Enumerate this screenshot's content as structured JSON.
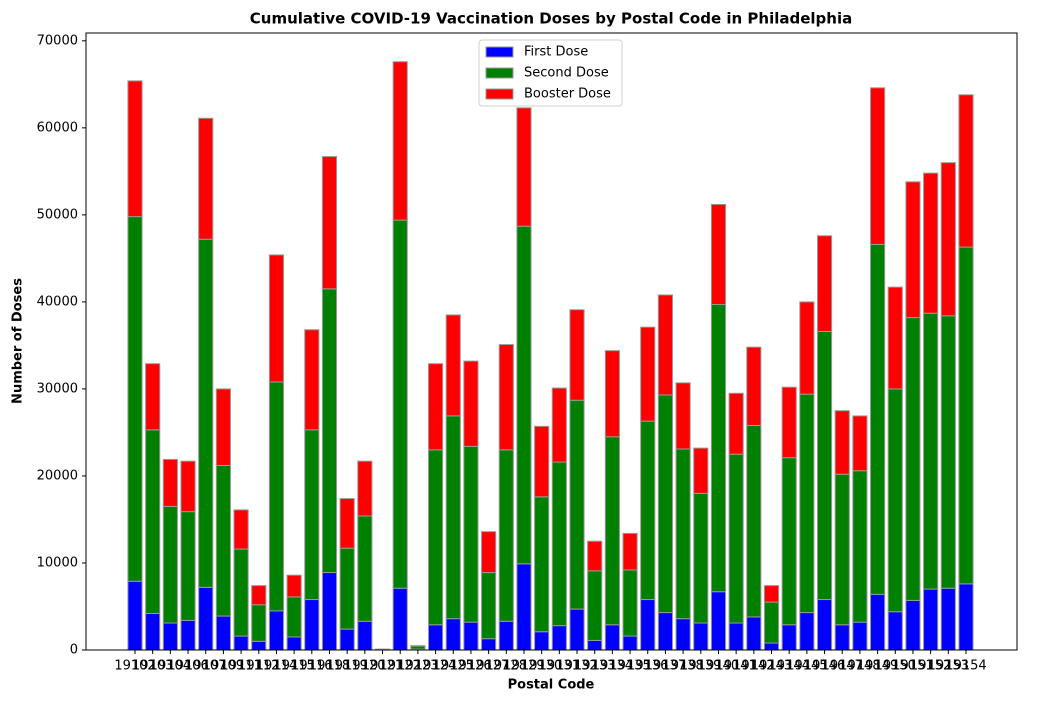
{
  "chart_data": {
    "type": "stacked_bar",
    "title": "Cumulative COVID-19 Vaccination Doses by Postal Code in Philadelphia",
    "x_label": "Postal Code",
    "y_label": "Number of Doses",
    "categories": [
      "19102",
      "19103",
      "19104",
      "19106",
      "19107",
      "19109",
      "19111",
      "19112",
      "19114",
      "19115",
      "19116",
      "19118",
      "19119",
      "19120",
      "19121",
      "19122",
      "19123",
      "19124",
      "19125",
      "19126",
      "19127",
      "19128",
      "19129",
      "19130",
      "19131",
      "19132",
      "19133",
      "19134",
      "19135",
      "19136",
      "19137",
      "19138",
      "19139",
      "19140",
      "19141",
      "19142",
      "19143",
      "19144",
      "19145",
      "19146",
      "19147",
      "19148",
      "19149",
      "19150",
      "19151",
      "19152",
      "19153",
      "19154"
    ],
    "series": [
      {
        "name": "First Dose",
        "color": "#0000ff",
        "values": [
          7900,
          4200,
          3100,
          3400,
          7200,
          3900,
          1600,
          1000,
          4500,
          1500,
          5800,
          8900,
          2400,
          3300,
          50,
          7100,
          100,
          2900,
          3600,
          3200,
          1300,
          3300,
          9900,
          2100,
          2800,
          4700,
          1100,
          2900,
          1600,
          5800,
          4300,
          3600,
          3100,
          6700,
          3100,
          3800,
          800,
          2900,
          4300,
          5800,
          2900,
          3200,
          6400,
          4400,
          5700,
          7000,
          7100,
          7600
        ]
      },
      {
        "name": "Second Dose",
        "color": "#008000",
        "values": [
          41900,
          21100,
          13400,
          12500,
          40000,
          17300,
          10000,
          4200,
          26300,
          4600,
          19500,
          32600,
          9300,
          12100,
          30,
          42300,
          350,
          20100,
          23300,
          20200,
          7600,
          19700,
          38800,
          15500,
          18800,
          24000,
          8000,
          21600,
          7600,
          20500,
          25000,
          19500,
          14900,
          33000,
          19400,
          22000,
          4700,
          19200,
          25100,
          30800,
          17300,
          17400,
          40200,
          25600,
          32500,
          31700,
          31300,
          38700
        ]
      },
      {
        "name": "Booster Dose",
        "color": "#ff0000",
        "values": [
          15600,
          7600,
          5400,
          5800,
          13900,
          8800,
          4500,
          2200,
          14600,
          2500,
          11500,
          15200,
          5700,
          6300,
          20,
          18200,
          50,
          9900,
          11600,
          9800,
          4700,
          12100,
          13600,
          8100,
          8500,
          10400,
          3400,
          9900,
          4200,
          10800,
          11500,
          7600,
          5200,
          11500,
          7000,
          9000,
          1900,
          8100,
          10600,
          11000,
          7300,
          6300,
          18000,
          11700,
          15600,
          16100,
          17600,
          17500
        ]
      }
    ],
    "ylim": [
      0,
      70900
    ],
    "yticks": [
      0,
      10000,
      20000,
      30000,
      40000,
      50000,
      60000,
      70000
    ],
    "legend": "upper center"
  }
}
